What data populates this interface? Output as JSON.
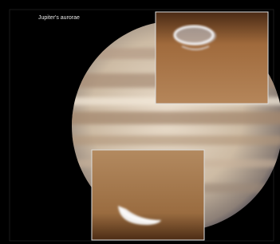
{
  "title": "Jupiter's aurorae"
}
